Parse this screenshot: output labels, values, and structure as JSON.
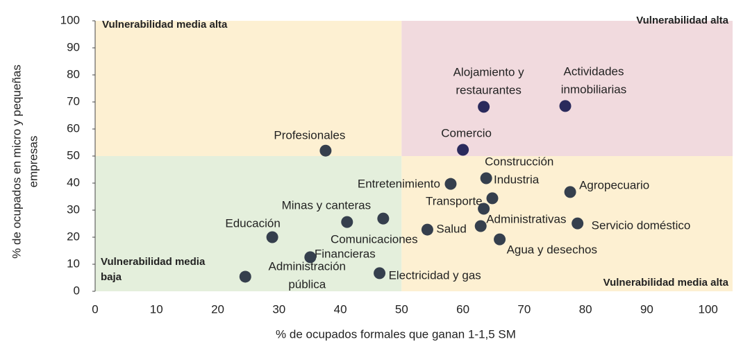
{
  "chart_data": {
    "type": "scatter",
    "xlabel": "% de ocupados formales que ganan 1-1,5 SM",
    "ylabel": [
      "% de ocupados en micro y pequeñas",
      "empresas"
    ],
    "xlim": [
      0,
      104
    ],
    "ylim": [
      0,
      100
    ],
    "xticks": [
      0,
      10,
      20,
      30,
      40,
      50,
      60,
      70,
      80,
      90,
      100
    ],
    "yticks": [
      0,
      10,
      20,
      30,
      40,
      50,
      60,
      70,
      80,
      90,
      100
    ],
    "quadrant_split": {
      "x": 50,
      "y": 50
    },
    "quadrants": [
      {
        "label": [
          "Vulnerabilidad media alta"
        ],
        "color": "#fdf0d2"
      },
      {
        "label": [
          "Vulnerabilidad alta"
        ],
        "color": "#f1dade"
      },
      {
        "label": [
          "Vulnerabilidad media",
          "baja"
        ],
        "color": "#e4efdc"
      },
      {
        "label": [
          "Vulnerabilidad media alta"
        ],
        "color": "#fdf0d2"
      }
    ],
    "points": [
      {
        "label": [
          "Alojamiento y",
          "restaurantes"
        ],
        "x": 63.4,
        "y": 68.2,
        "color": "#2a2a5c"
      },
      {
        "label": [
          "Actividades",
          "inmobiliarias"
        ],
        "x": 76.7,
        "y": 68.5,
        "color": "#2a2a5c"
      },
      {
        "label": [
          "Comercio"
        ],
        "x": 60.0,
        "y": 52.3,
        "color": "#2a2a5c"
      },
      {
        "label": [
          "Profesionales"
        ],
        "x": 37.6,
        "y": 52.0,
        "color": "#353f4d"
      },
      {
        "label": [
          "Construcción"
        ],
        "x": 63.8,
        "y": 41.8,
        "color": "#353f4d"
      },
      {
        "label": [
          "Entretenimiento"
        ],
        "x": 58.0,
        "y": 39.7,
        "color": "#353f4d"
      },
      {
        "label": [
          "Industria"
        ],
        "x": 64.8,
        "y": 34.4,
        "color": "#353f4d"
      },
      {
        "label": [
          "Agropecuario"
        ],
        "x": 77.5,
        "y": 36.7,
        "color": "#353f4d"
      },
      {
        "label": [
          "Transporte"
        ],
        "x": 63.4,
        "y": 30.5,
        "color": "#353f4d"
      },
      {
        "label": [
          "Minas y canteras"
        ],
        "x": 47.0,
        "y": 26.9,
        "color": "#353f4d"
      },
      {
        "label": [
          "Comunicaciones"
        ],
        "x": 41.1,
        "y": 25.6,
        "color": "#353f4d"
      },
      {
        "label": [
          "Servicio doméstico"
        ],
        "x": 78.7,
        "y": 25.1,
        "color": "#353f4d"
      },
      {
        "label": [
          "Administrativas"
        ],
        "x": 62.9,
        "y": 24.1,
        "color": "#353f4d"
      },
      {
        "label": [
          "Salud"
        ],
        "x": 54.2,
        "y": 22.8,
        "color": "#353f4d"
      },
      {
        "label": [
          "Educación"
        ],
        "x": 28.9,
        "y": 20.0,
        "color": "#353f4d"
      },
      {
        "label": [
          "Agua y desechos"
        ],
        "x": 66.0,
        "y": 19.2,
        "color": "#353f4d"
      },
      {
        "label": [
          "Financieras"
        ],
        "x": 35.1,
        "y": 12.6,
        "color": "#353f4d"
      },
      {
        "label": [
          "Administración",
          "pública"
        ],
        "x": 24.5,
        "y": 5.4,
        "color": "#353f4d"
      },
      {
        "label": [
          "Electricidad y gas"
        ],
        "x": 46.4,
        "y": 6.7,
        "color": "#353f4d"
      }
    ]
  }
}
